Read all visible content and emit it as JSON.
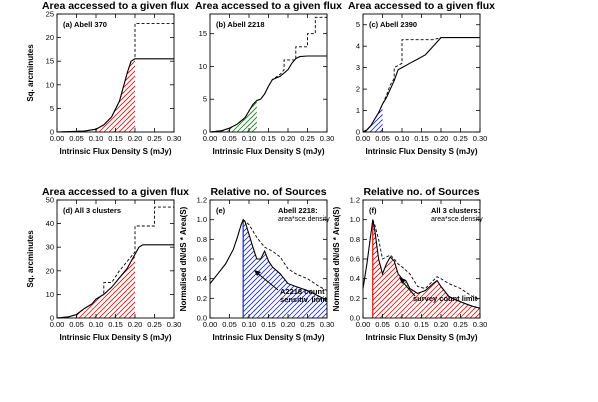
{
  "chart_data": [
    {
      "id": "a",
      "type": "line",
      "title": "Area accessed to a given flux",
      "xlabel": "Intrinsic Flux Density S (mJy)",
      "ylabel": "Sq. arcminutes",
      "panel_label": "(a) Abell 370",
      "xlim": [
        0,
        0.3
      ],
      "ylim": [
        0,
        25
      ],
      "x_ticks": [
        "0.00",
        "0.05",
        "0.10",
        "0.15",
        "0.20",
        "0.25",
        "0.30"
      ],
      "y_ticks": [
        "0",
        "5",
        "10",
        "15",
        "20",
        "25"
      ],
      "hatch_color": "#e01010",
      "hatch_range": [
        0.1,
        0.2
      ],
      "series": [
        {
          "style": "solid",
          "x": [
            0,
            0.07,
            0.1,
            0.12,
            0.14,
            0.16,
            0.17,
            0.18,
            0.19,
            0.2,
            0.3
          ],
          "y": [
            0,
            0.2,
            0.6,
            1.5,
            3.2,
            6.5,
            9.5,
            12.5,
            15,
            15.5,
            15.5
          ]
        },
        {
          "style": "dashed",
          "x": [
            0,
            0.07,
            0.1,
            0.12,
            0.14,
            0.16,
            0.17,
            0.18,
            0.19,
            0.2,
            0.2,
            0.3
          ],
          "y": [
            0,
            0.2,
            0.6,
            1.5,
            3.2,
            6.5,
            9.5,
            12.5,
            15,
            15.5,
            23,
            23
          ]
        }
      ]
    },
    {
      "id": "b",
      "type": "line",
      "title": "Area accessed to a given flux",
      "xlabel": "Intrinsic Flux Density S (mJy)",
      "ylabel": "",
      "panel_label": "(b) Abell 2218",
      "xlim": [
        0,
        0.3
      ],
      "ylim": [
        0,
        18
      ],
      "x_ticks": [
        "0.00",
        "0.05",
        "0.10",
        "0.15",
        "0.20",
        "0.25",
        "0.30"
      ],
      "y_ticks": [
        "0",
        "5",
        "10",
        "15"
      ],
      "hatch_color": "#1a7a1a",
      "hatch_range": [
        0.0,
        0.12
      ],
      "series": [
        {
          "style": "solid",
          "x": [
            0,
            0.03,
            0.05,
            0.07,
            0.09,
            0.1,
            0.11,
            0.12,
            0.13,
            0.14,
            0.15,
            0.16,
            0.18,
            0.2,
            0.21,
            0.22,
            0.23,
            0.25,
            0.3
          ],
          "y": [
            0,
            0.2,
            0.6,
            1.2,
            2.2,
            3.2,
            4.2,
            4.8,
            5.0,
            5.8,
            7.0,
            8.0,
            8.5,
            9.5,
            10.5,
            11.2,
            11.5,
            11.6,
            11.6
          ]
        },
        {
          "style": "dashed",
          "x": [
            0,
            0.03,
            0.05,
            0.07,
            0.09,
            0.1,
            0.11,
            0.12,
            0.13,
            0.14,
            0.15,
            0.16,
            0.18,
            0.19,
            0.19,
            0.22,
            0.22,
            0.25,
            0.25,
            0.27,
            0.27,
            0.3
          ],
          "y": [
            0,
            0.2,
            0.6,
            1.2,
            2.2,
            3.2,
            4.2,
            4.8,
            5.0,
            5.8,
            7.0,
            8.0,
            8.8,
            9.5,
            11.0,
            11.0,
            13.0,
            13.0,
            15.0,
            15.0,
            17.5,
            17.5
          ]
        }
      ]
    },
    {
      "id": "c",
      "type": "line",
      "title": "Area accessed to a given flux",
      "xlabel": "Intrinsic Flux Density S (mJy)",
      "ylabel": "",
      "panel_label": "(c) Abell 2390",
      "xlim": [
        0,
        0.3
      ],
      "ylim": [
        0,
        5.5
      ],
      "x_ticks": [
        "0.00",
        "0.05",
        "0.10",
        "0.15",
        "0.20",
        "0.25",
        "0.30"
      ],
      "y_ticks": [
        "0",
        "1",
        "2",
        "3",
        "4",
        "5"
      ],
      "hatch_color": "#1a2ad0",
      "hatch_range": [
        0.0,
        0.05
      ],
      "series": [
        {
          "style": "solid",
          "x": [
            0,
            0.01,
            0.02,
            0.03,
            0.04,
            0.05,
            0.06,
            0.07,
            0.08,
            0.09,
            0.1,
            0.12,
            0.14,
            0.16,
            0.18,
            0.2,
            0.3
          ],
          "y": [
            0,
            0.1,
            0.3,
            0.6,
            0.9,
            1.3,
            1.6,
            2.0,
            2.4,
            2.9,
            3.0,
            3.2,
            3.4,
            3.6,
            4.0,
            4.4,
            4.4
          ]
        },
        {
          "style": "dashed",
          "x": [
            0,
            0.01,
            0.02,
            0.03,
            0.04,
            0.05,
            0.06,
            0.07,
            0.08,
            0.08,
            0.09,
            0.1,
            0.1,
            0.12,
            0.14,
            0.16,
            0.18,
            0.2,
            0.3
          ],
          "y": [
            0,
            0.1,
            0.3,
            0.6,
            0.9,
            1.3,
            1.7,
            2.2,
            2.5,
            3.0,
            3.1,
            3.2,
            4.3,
            4.3,
            4.3,
            4.3,
            4.3,
            4.4,
            4.4
          ]
        }
      ]
    },
    {
      "id": "d",
      "type": "line",
      "title": "Area accessed to a given flux",
      "xlabel": "Intrinsic Flux Density S (mJy)",
      "ylabel": "Sq. arcminutes",
      "panel_label": "(d) All 3 clusters",
      "xlim": [
        0,
        0.3
      ],
      "ylim": [
        0,
        50
      ],
      "x_ticks": [
        "0.00",
        "0.05",
        "0.10",
        "0.15",
        "0.20",
        "0.25",
        "0.30"
      ],
      "y_ticks": [
        "0",
        "10",
        "20",
        "30",
        "40",
        "50"
      ],
      "hatch_color": "#e01010",
      "hatch_range": [
        0.05,
        0.2
      ],
      "series": [
        {
          "style": "solid",
          "x": [
            0,
            0.03,
            0.05,
            0.07,
            0.09,
            0.1,
            0.12,
            0.14,
            0.16,
            0.18,
            0.2,
            0.21,
            0.22,
            0.25,
            0.3
          ],
          "y": [
            0,
            0.5,
            1.5,
            4,
            6,
            8,
            10,
            13,
            17,
            21,
            27,
            30,
            31,
            31,
            31
          ]
        },
        {
          "style": "dashed",
          "x": [
            0,
            0.03,
            0.05,
            0.07,
            0.09,
            0.1,
            0.12,
            0.12,
            0.14,
            0.16,
            0.18,
            0.2,
            0.2,
            0.25,
            0.25,
            0.3
          ],
          "y": [
            0,
            0.5,
            1.5,
            4,
            6,
            8,
            10,
            15,
            15,
            20,
            24,
            28,
            39,
            39,
            47,
            47
          ]
        }
      ]
    },
    {
      "id": "e",
      "type": "line",
      "title": "Relative no. of Sources",
      "xlabel": "Intrinsic Flux Density S (mJy)",
      "ylabel": "Normalised dN/dS * Area(S)",
      "panel_label": "(e)",
      "legend_title": "Abell 2218:",
      "legend_sub": "area*sce.density",
      "annotation": "A2218 count sensitiv. limit",
      "annotation_lines": [
        "A2218 count",
        "sensitiv. limit"
      ],
      "xlim": [
        0,
        0.3
      ],
      "ylim": [
        0,
        1.2
      ],
      "x_ticks": [
        "0.00",
        "0.05",
        "0.10",
        "0.15",
        "0.20",
        "0.25",
        "0.30"
      ],
      "y_ticks": [
        "0.0",
        "0.2",
        "0.4",
        "0.6",
        "0.8",
        "1.0",
        "1.2"
      ],
      "hatch_color": "#1a2ad0",
      "hatch_range": [
        0.085,
        0.3
      ],
      "series": [
        {
          "style": "solid",
          "x": [
            0,
            0.02,
            0.04,
            0.06,
            0.07,
            0.08,
            0.085,
            0.09,
            0.1,
            0.11,
            0.12,
            0.13,
            0.14,
            0.15,
            0.16,
            0.18,
            0.2,
            0.22,
            0.25,
            0.28,
            0.3
          ],
          "y": [
            0.35,
            0.45,
            0.55,
            0.7,
            0.82,
            0.95,
            1.0,
            0.98,
            0.85,
            0.72,
            0.6,
            0.6,
            0.68,
            0.58,
            0.52,
            0.45,
            0.35,
            0.32,
            0.28,
            0.22,
            0.18
          ]
        },
        {
          "style": "dashed",
          "x": [
            0.085,
            0.1,
            0.12,
            0.14,
            0.16,
            0.18,
            0.2,
            0.22,
            0.25,
            0.28,
            0.3
          ],
          "y": [
            1.0,
            0.95,
            0.82,
            0.72,
            0.68,
            0.62,
            0.5,
            0.45,
            0.4,
            0.32,
            0.28
          ]
        }
      ]
    },
    {
      "id": "f",
      "type": "line",
      "title": "Relative no. of Sources",
      "xlabel": "Intrinsic Flux Density S (mJy)",
      "ylabel": "Normalised dN/dS * Area(S)",
      "panel_label": "(f)",
      "legend_title": "All 3 clusters:",
      "legend_sub": "area*sce.density",
      "annotation": "survey count limit",
      "xlim": [
        0,
        0.3
      ],
      "ylim": [
        0,
        1.2
      ],
      "x_ticks": [
        "0.00",
        "0.05",
        "0.10",
        "0.15",
        "0.20",
        "0.25",
        "0.30"
      ],
      "y_ticks": [
        "0.0",
        "0.2",
        "0.4",
        "0.6",
        "0.8",
        "1.0",
        "1.2"
      ],
      "hatch_color": "#e01010",
      "hatch_range": [
        0.025,
        0.3
      ],
      "series": [
        {
          "style": "solid",
          "x": [
            0,
            0.01,
            0.02,
            0.025,
            0.03,
            0.04,
            0.05,
            0.06,
            0.07,
            0.08,
            0.09,
            0.1,
            0.11,
            0.12,
            0.14,
            0.16,
            0.18,
            0.19,
            0.2,
            0.22,
            0.24,
            0.26,
            0.28,
            0.3
          ],
          "y": [
            0.3,
            0.55,
            0.85,
            1.0,
            0.9,
            0.6,
            0.45,
            0.55,
            0.62,
            0.58,
            0.45,
            0.4,
            0.38,
            0.3,
            0.25,
            0.28,
            0.35,
            0.38,
            0.32,
            0.22,
            0.18,
            0.15,
            0.12,
            0.1
          ]
        },
        {
          "style": "dashed",
          "x": [
            0.025,
            0.03,
            0.04,
            0.05,
            0.06,
            0.07,
            0.08,
            0.09,
            0.1,
            0.12,
            0.14,
            0.16,
            0.18,
            0.19,
            0.2,
            0.22,
            0.25,
            0.28,
            0.3
          ],
          "y": [
            1.0,
            0.95,
            0.8,
            0.6,
            0.62,
            0.64,
            0.6,
            0.55,
            0.52,
            0.45,
            0.32,
            0.3,
            0.38,
            0.42,
            0.4,
            0.35,
            0.3,
            0.22,
            0.18
          ]
        }
      ]
    }
  ]
}
